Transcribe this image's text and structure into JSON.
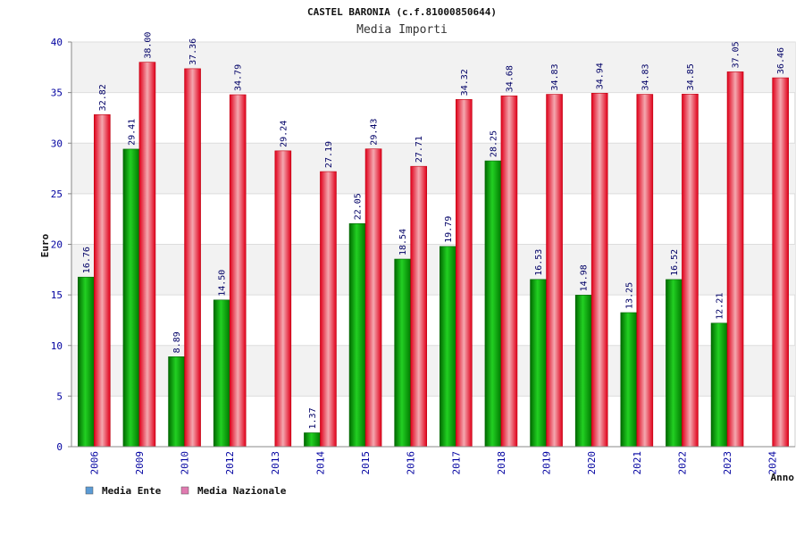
{
  "chart_data": {
    "type": "bar",
    "title": "CASTEL BARONIA (c.f.81000850644)",
    "subtitle": "Media Importi",
    "xlabel": "Anno",
    "ylabel": "Euro",
    "ylim": [
      0,
      40
    ],
    "yticks": [
      0,
      5,
      10,
      15,
      20,
      25,
      30,
      35,
      40
    ],
    "grid": true,
    "legend_position": "bottom-left",
    "categories": [
      "2006",
      "2009",
      "2010",
      "2012",
      "2013",
      "2014",
      "2015",
      "2016",
      "2017",
      "2018",
      "2019",
      "2020",
      "2021",
      "2022",
      "2023",
      "2024"
    ],
    "series": [
      {
        "name": "Media Ente",
        "color": "#00a000",
        "legend_color": "#5b9bd5",
        "values": [
          16.76,
          29.41,
          8.89,
          14.5,
          null,
          1.37,
          22.05,
          18.54,
          19.79,
          28.25,
          16.53,
          14.98,
          13.25,
          16.52,
          12.21,
          null
        ],
        "labels": [
          "16.76",
          "29.41",
          "8.89",
          "14.50",
          "",
          "1.37",
          "22.05",
          "18.54",
          "19.79",
          "28.25",
          "16.53",
          "14.98",
          "13.25",
          "16.52",
          "12.21",
          ""
        ]
      },
      {
        "name": "Media Nazionale",
        "color": "#e8001a",
        "legend_color": "#e07ab0",
        "values": [
          32.82,
          38.0,
          37.36,
          34.79,
          29.24,
          27.19,
          29.43,
          27.71,
          34.32,
          34.68,
          34.83,
          34.94,
          34.83,
          34.85,
          37.05,
          36.46
        ],
        "labels": [
          "32.82",
          "38.00",
          "37.36",
          "34.79",
          "29.24",
          "27.19",
          "29.43",
          "27.71",
          "34.32",
          "34.68",
          "34.83",
          "34.94",
          "34.83",
          "34.85",
          "37.05",
          "36.46"
        ]
      }
    ]
  }
}
